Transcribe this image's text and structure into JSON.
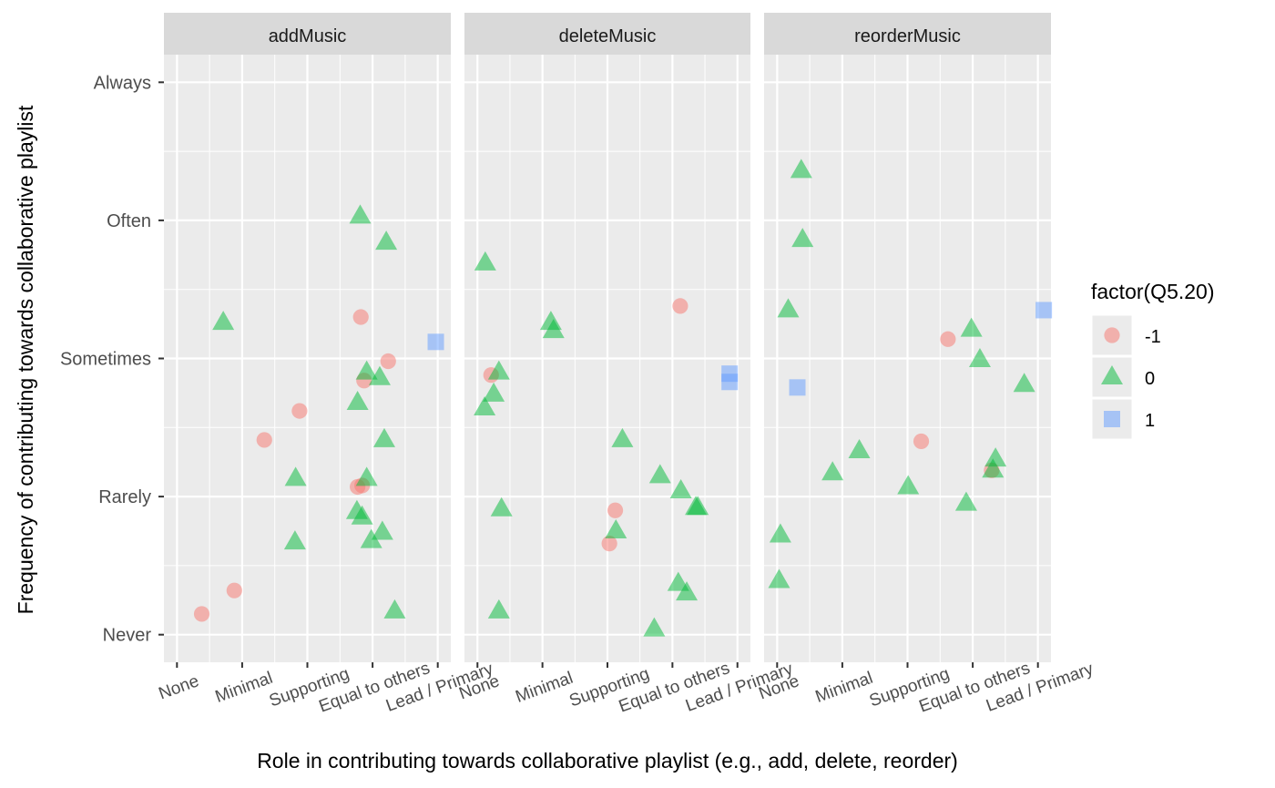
{
  "chart_data": {
    "type": "scatter",
    "facet_var": "action",
    "panels": [
      "addMusic",
      "deleteMusic",
      "reorderMusic"
    ],
    "xlabel": "Role in contributing towards collaborative playlist (e.g., add, delete, reorder)",
    "ylabel": "Frequency of contributing towards collaborative playlist",
    "x_ticks": [
      "None",
      "Minimal",
      "Supporting",
      "Equal to others",
      "Lead / Primary"
    ],
    "y_ticks": [
      "Never",
      "Rarely",
      "Sometimes",
      "Often",
      "Always"
    ],
    "xlim": [
      0.8,
      5.2
    ],
    "ylim": [
      0.8,
      5.2
    ],
    "grid": true,
    "jitter": true,
    "legend": {
      "title": "factor(Q5.20)",
      "position": "right",
      "entries": [
        {
          "label": "-1",
          "shape": "circle",
          "color": "#F8766D"
        },
        {
          "label": "0",
          "shape": "triangle",
          "color": "#00BA38"
        },
        {
          "label": "1",
          "shape": "square",
          "color": "#619CFF"
        }
      ]
    },
    "points": [
      {
        "panel": "addMusic",
        "x": 1.38,
        "y": 1.15,
        "group": "-1"
      },
      {
        "panel": "addMusic",
        "x": 1.88,
        "y": 1.32,
        "group": "-1"
      },
      {
        "panel": "addMusic",
        "x": 2.34,
        "y": 2.41,
        "group": "-1"
      },
      {
        "panel": "addMusic",
        "x": 2.88,
        "y": 2.62,
        "group": "-1"
      },
      {
        "panel": "addMusic",
        "x": 3.77,
        "y": 2.07,
        "group": "-1"
      },
      {
        "panel": "addMusic",
        "x": 3.84,
        "y": 2.08,
        "group": "-1"
      },
      {
        "panel": "addMusic",
        "x": 3.82,
        "y": 3.3,
        "group": "-1"
      },
      {
        "panel": "addMusic",
        "x": 3.87,
        "y": 2.84,
        "group": "-1"
      },
      {
        "panel": "addMusic",
        "x": 4.24,
        "y": 2.98,
        "group": "-1"
      },
      {
        "panel": "addMusic",
        "x": 1.71,
        "y": 3.26,
        "group": "0"
      },
      {
        "panel": "addMusic",
        "x": 3.81,
        "y": 4.03,
        "group": "0"
      },
      {
        "panel": "addMusic",
        "x": 4.21,
        "y": 3.84,
        "group": "0"
      },
      {
        "panel": "addMusic",
        "x": 3.91,
        "y": 2.9,
        "group": "0"
      },
      {
        "panel": "addMusic",
        "x": 4.11,
        "y": 2.86,
        "group": "0"
      },
      {
        "panel": "addMusic",
        "x": 3.77,
        "y": 2.68,
        "group": "0"
      },
      {
        "panel": "addMusic",
        "x": 4.18,
        "y": 2.41,
        "group": "0"
      },
      {
        "panel": "addMusic",
        "x": 2.82,
        "y": 2.13,
        "group": "0"
      },
      {
        "panel": "addMusic",
        "x": 3.91,
        "y": 2.13,
        "group": "0"
      },
      {
        "panel": "addMusic",
        "x": 3.76,
        "y": 1.89,
        "group": "0"
      },
      {
        "panel": "addMusic",
        "x": 3.84,
        "y": 1.85,
        "group": "0"
      },
      {
        "panel": "addMusic",
        "x": 4.15,
        "y": 1.74,
        "group": "0"
      },
      {
        "panel": "addMusic",
        "x": 3.98,
        "y": 1.68,
        "group": "0"
      },
      {
        "panel": "addMusic",
        "x": 2.81,
        "y": 1.67,
        "group": "0"
      },
      {
        "panel": "addMusic",
        "x": 4.34,
        "y": 1.17,
        "group": "0"
      },
      {
        "panel": "addMusic",
        "x": 4.97,
        "y": 3.12,
        "group": "1"
      },
      {
        "panel": "deleteMusic",
        "x": 1.21,
        "y": 2.88,
        "group": "-1"
      },
      {
        "panel": "deleteMusic",
        "x": 3.12,
        "y": 1.9,
        "group": "-1"
      },
      {
        "panel": "deleteMusic",
        "x": 3.03,
        "y": 1.66,
        "group": "-1"
      },
      {
        "panel": "deleteMusic",
        "x": 4.12,
        "y": 3.38,
        "group": "-1"
      },
      {
        "panel": "deleteMusic",
        "x": 1.12,
        "y": 3.69,
        "group": "0"
      },
      {
        "panel": "deleteMusic",
        "x": 2.13,
        "y": 3.26,
        "group": "0"
      },
      {
        "panel": "deleteMusic",
        "x": 2.17,
        "y": 3.2,
        "group": "0"
      },
      {
        "panel": "deleteMusic",
        "x": 1.33,
        "y": 2.9,
        "group": "0"
      },
      {
        "panel": "deleteMusic",
        "x": 1.25,
        "y": 2.74,
        "group": "0"
      },
      {
        "panel": "deleteMusic",
        "x": 1.11,
        "y": 2.64,
        "group": "0"
      },
      {
        "panel": "deleteMusic",
        "x": 3.23,
        "y": 2.41,
        "group": "0"
      },
      {
        "panel": "deleteMusic",
        "x": 3.81,
        "y": 2.15,
        "group": "0"
      },
      {
        "panel": "deleteMusic",
        "x": 4.13,
        "y": 2.04,
        "group": "0"
      },
      {
        "panel": "deleteMusic",
        "x": 4.36,
        "y": 1.92,
        "group": "0"
      },
      {
        "panel": "deleteMusic",
        "x": 4.39,
        "y": 1.92,
        "group": "0"
      },
      {
        "panel": "deleteMusic",
        "x": 1.37,
        "y": 1.91,
        "group": "0"
      },
      {
        "panel": "deleteMusic",
        "x": 3.13,
        "y": 1.75,
        "group": "0"
      },
      {
        "panel": "deleteMusic",
        "x": 4.09,
        "y": 1.37,
        "group": "0"
      },
      {
        "panel": "deleteMusic",
        "x": 4.22,
        "y": 1.3,
        "group": "0"
      },
      {
        "panel": "deleteMusic",
        "x": 1.33,
        "y": 1.17,
        "group": "0"
      },
      {
        "panel": "deleteMusic",
        "x": 3.72,
        "y": 1.04,
        "group": "0"
      },
      {
        "panel": "deleteMusic",
        "x": 4.88,
        "y": 2.89,
        "group": "1"
      },
      {
        "panel": "deleteMusic",
        "x": 4.88,
        "y": 2.83,
        "group": "1"
      },
      {
        "panel": "reorderMusic",
        "x": 3.62,
        "y": 3.14,
        "group": "-1"
      },
      {
        "panel": "reorderMusic",
        "x": 3.21,
        "y": 2.4,
        "group": "-1"
      },
      {
        "panel": "reorderMusic",
        "x": 4.29,
        "y": 2.19,
        "group": "-1"
      },
      {
        "panel": "reorderMusic",
        "x": 1.37,
        "y": 4.36,
        "group": "0"
      },
      {
        "panel": "reorderMusic",
        "x": 1.39,
        "y": 3.86,
        "group": "0"
      },
      {
        "panel": "reorderMusic",
        "x": 1.17,
        "y": 3.35,
        "group": "0"
      },
      {
        "panel": "reorderMusic",
        "x": 3.98,
        "y": 3.21,
        "group": "0"
      },
      {
        "panel": "reorderMusic",
        "x": 4.11,
        "y": 2.99,
        "group": "0"
      },
      {
        "panel": "reorderMusic",
        "x": 4.79,
        "y": 2.81,
        "group": "0"
      },
      {
        "panel": "reorderMusic",
        "x": 2.26,
        "y": 2.33,
        "group": "0"
      },
      {
        "panel": "reorderMusic",
        "x": 1.85,
        "y": 2.17,
        "group": "0"
      },
      {
        "panel": "reorderMusic",
        "x": 4.35,
        "y": 2.27,
        "group": "0"
      },
      {
        "panel": "reorderMusic",
        "x": 4.31,
        "y": 2.19,
        "group": "0"
      },
      {
        "panel": "reorderMusic",
        "x": 3.01,
        "y": 2.07,
        "group": "0"
      },
      {
        "panel": "reorderMusic",
        "x": 3.9,
        "y": 1.95,
        "group": "0"
      },
      {
        "panel": "reorderMusic",
        "x": 1.05,
        "y": 1.72,
        "group": "0"
      },
      {
        "panel": "reorderMusic",
        "x": 1.03,
        "y": 1.39,
        "group": "0"
      },
      {
        "panel": "reorderMusic",
        "x": 5.09,
        "y": 3.35,
        "group": "1"
      },
      {
        "panel": "reorderMusic",
        "x": 1.31,
        "y": 2.79,
        "group": "1"
      }
    ]
  }
}
